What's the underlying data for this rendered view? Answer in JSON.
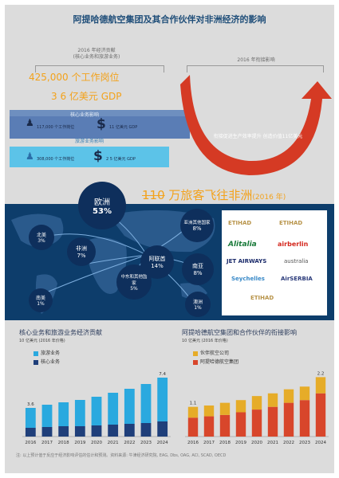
{
  "title": "阿提哈德航空集团及其合作伙伴对非洲经济的影响",
  "timeline": {
    "left_label": "2016 年经济贡献",
    "left_sub": "(核心业务和旅游业务)",
    "right_label": "2016 年衔接影响"
  },
  "headline_jobs": "425,000 个工作岗位",
  "headline_gdp": "3 6 亿美元 GDP",
  "core": {
    "label": "核心业务影响",
    "jobs": "117,000 个工作岗位",
    "gdp": "11 亿美元 GDP"
  },
  "tourism": {
    "label": "旅游业务影响",
    "jobs": "308,000 个工作岗位",
    "gdp": "2 5 亿美元 GDP"
  },
  "arrow_text": "衔接促进生产效率提升 创造价值11亿美元",
  "passengers": {
    "strike": "110",
    "text": " 万旅客飞往非洲",
    "year": "(2016 年)"
  },
  "regions": [
    {
      "name": "欧洲",
      "pct": "53%"
    },
    {
      "name": "北美",
      "pct": "3%"
    },
    {
      "name": "非洲",
      "pct": "7%"
    },
    {
      "name": "中东和其他国家",
      "pct": "5%"
    },
    {
      "name": "南美",
      "pct": "1%"
    },
    {
      "name": "阿联酋",
      "pct": "14%"
    },
    {
      "name": "亚洲其他国家",
      "pct": "8%"
    },
    {
      "name": "南亚",
      "pct": "8%"
    },
    {
      "name": "澳洲",
      "pct": "1%"
    }
  ],
  "logos": [
    "ETIHAD",
    "ETIHAD",
    "Alitalia",
    "airberlin",
    "JET AIRWAYS",
    "australia",
    "Seychelles",
    "AirSERBIA",
    "ETIHAD"
  ],
  "chart_data": [
    {
      "type": "bar",
      "title": "核心业务和旅游业务经济贡献",
      "unit": "10 亿美元 (2016 年价格)",
      "categories": [
        "2016",
        "2017",
        "2018",
        "2019",
        "2020",
        "2021",
        "2022",
        "2023",
        "2024"
      ],
      "series": [
        {
          "name": "旅游业务",
          "color": "#2aa9df",
          "values": [
            2.5,
            2.8,
            3.0,
            3.3,
            3.6,
            4.0,
            4.4,
            4.9,
            5.5
          ]
        },
        {
          "name": "核心业务",
          "color": "#1f3f7a",
          "values": [
            1.1,
            1.2,
            1.3,
            1.3,
            1.4,
            1.5,
            1.6,
            1.7,
            1.9
          ]
        }
      ],
      "data_labels": {
        "2016": "3.6",
        "2024": "7.4"
      },
      "ylim": [
        0,
        7.8
      ]
    },
    {
      "type": "bar",
      "title": "阿提哈德航空集团和合作伙伴的衔接影响",
      "unit": "10 亿美元 (2016 年价格)",
      "categories": [
        "2016",
        "2017",
        "2018",
        "2019",
        "2020",
        "2021",
        "2022",
        "2023",
        "2024"
      ],
      "series": [
        {
          "name": "伙伴航空公司",
          "color": "#e6ac28",
          "values": [
            0.4,
            0.4,
            0.45,
            0.45,
            0.5,
            0.5,
            0.5,
            0.5,
            0.6
          ]
        },
        {
          "name": "阿提哈德航空集团",
          "color": "#d8462b",
          "values": [
            0.7,
            0.75,
            0.8,
            0.9,
            1.0,
            1.1,
            1.25,
            1.35,
            1.6
          ]
        }
      ],
      "data_labels": {
        "2016": "1.1",
        "2024": "2.2"
      },
      "ylim": [
        0,
        2.3
      ]
    }
  ],
  "footnote": "注: 以上预计值于反应于经济影响评估的估计和预测。资料来源: 牛津经济研究院, EAG, Dbs, OAG, ACI, SCAD, OECD"
}
